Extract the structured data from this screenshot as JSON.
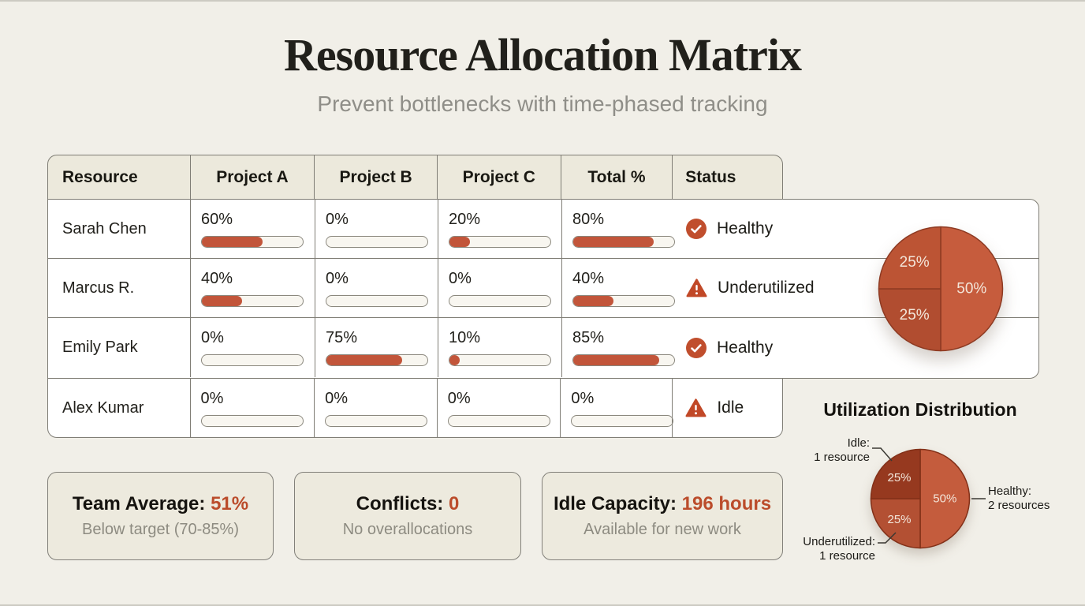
{
  "header": {
    "title": "Resource Allocation Matrix",
    "subtitle": "Prevent bottlenecks with time-phased tracking"
  },
  "table": {
    "columns": [
      "Resource",
      "Project A",
      "Project B",
      "Project C",
      "Total %",
      "Status"
    ],
    "rows": [
      {
        "resource": "Sarah Chen",
        "values": [
          60,
          0,
          20,
          80
        ],
        "status": {
          "label": "Healthy",
          "icon": "check-circle"
        }
      },
      {
        "resource": "Marcus R.",
        "values": [
          40,
          0,
          0,
          40
        ],
        "status": {
          "label": "Underutilized",
          "icon": "warning-triangle"
        }
      },
      {
        "resource": "Emily Park",
        "values": [
          0,
          75,
          10,
          85
        ],
        "status": {
          "label": "Healthy",
          "icon": "check-circle"
        }
      },
      {
        "resource": "Alex Kumar",
        "values": [
          0,
          0,
          0,
          0
        ],
        "status": {
          "label": "Idle",
          "icon": "warning-triangle"
        }
      }
    ]
  },
  "chart_data": [
    {
      "type": "pie",
      "title": "",
      "labels": [
        "Healthy",
        "Underutilized",
        "Idle"
      ],
      "values": [
        50,
        25,
        25
      ],
      "slice_labels": [
        "50%",
        "25%",
        "25%"
      ],
      "colors": [
        "#c65c3d",
        "#b14d30",
        "#bc5434"
      ],
      "stroke": "#8d3a22",
      "legend_position": "none"
    },
    {
      "type": "pie",
      "title": "Utilization Distribution",
      "labels": [
        "Healthy",
        "Underutilized",
        "Idle"
      ],
      "values": [
        50,
        25,
        25
      ],
      "slice_labels": [
        "50%",
        "25%",
        "25%"
      ],
      "colors": [
        "#c45c3d",
        "#b35033",
        "#96391f"
      ],
      "stroke": "#823018",
      "legend_position": "callouts",
      "callouts": {
        "idle": [
          "Idle:",
          "1 resource"
        ],
        "healthy": [
          "Healthy:",
          "2 resources"
        ],
        "underutilized": [
          "Underutilized:",
          "1 resource"
        ]
      }
    }
  ],
  "summary_cards": [
    {
      "label": "Team Average:",
      "value": "51%",
      "subtext": "Below target (70-85%)"
    },
    {
      "label": "Conflicts:",
      "value": "0",
      "subtext": "No overallocations"
    },
    {
      "label": "Idle Capacity:",
      "value": "196 hours",
      "subtext": "Available for new work"
    }
  ],
  "colors": {
    "page_bg": "#f1efe8",
    "accent": "#bb4c2b",
    "bar_fill": "#c2553a",
    "table_header_bg": "#ece9dc",
    "card_bg": "#edeade",
    "border": "#7f7d75"
  }
}
